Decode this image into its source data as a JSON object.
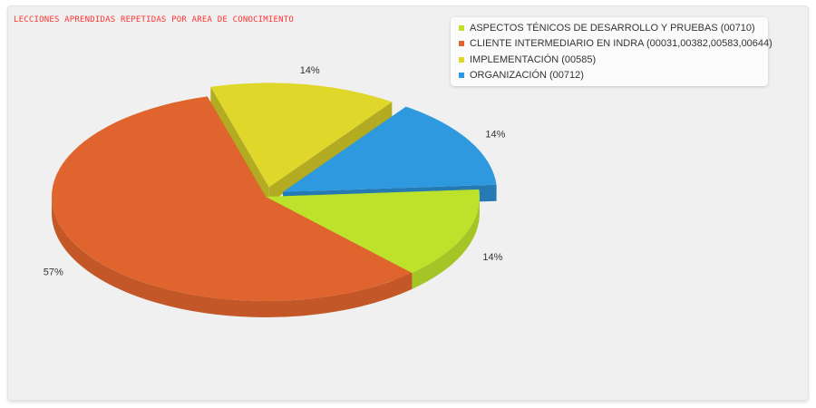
{
  "chart_data": {
    "type": "pie",
    "title": "LECCIONES APRENDIDAS REPETIDAS POR AREA DE CONOCIMIENTO",
    "legend_position": "top-right",
    "series": [
      {
        "name": "ASPECTOS TÉNICOS DE DESARROLLO Y PRUEBAS (00710)",
        "value": 14,
        "label": "14%",
        "color": "#bce22b"
      },
      {
        "name": "CLIENTE INTERMEDIARIO EN INDRA (00031,00382,00583,00644)",
        "value": 57,
        "label": "57%",
        "color": "#e0642d"
      },
      {
        "name": "IMPLEMENTACIÓN (00585)",
        "value": 14,
        "label": "14%",
        "color": "#e0d72b"
      },
      {
        "name": "ORGANIZACIÓN (00712)",
        "value": 14,
        "label": "14%",
        "color": "#2f99e0"
      }
    ]
  }
}
